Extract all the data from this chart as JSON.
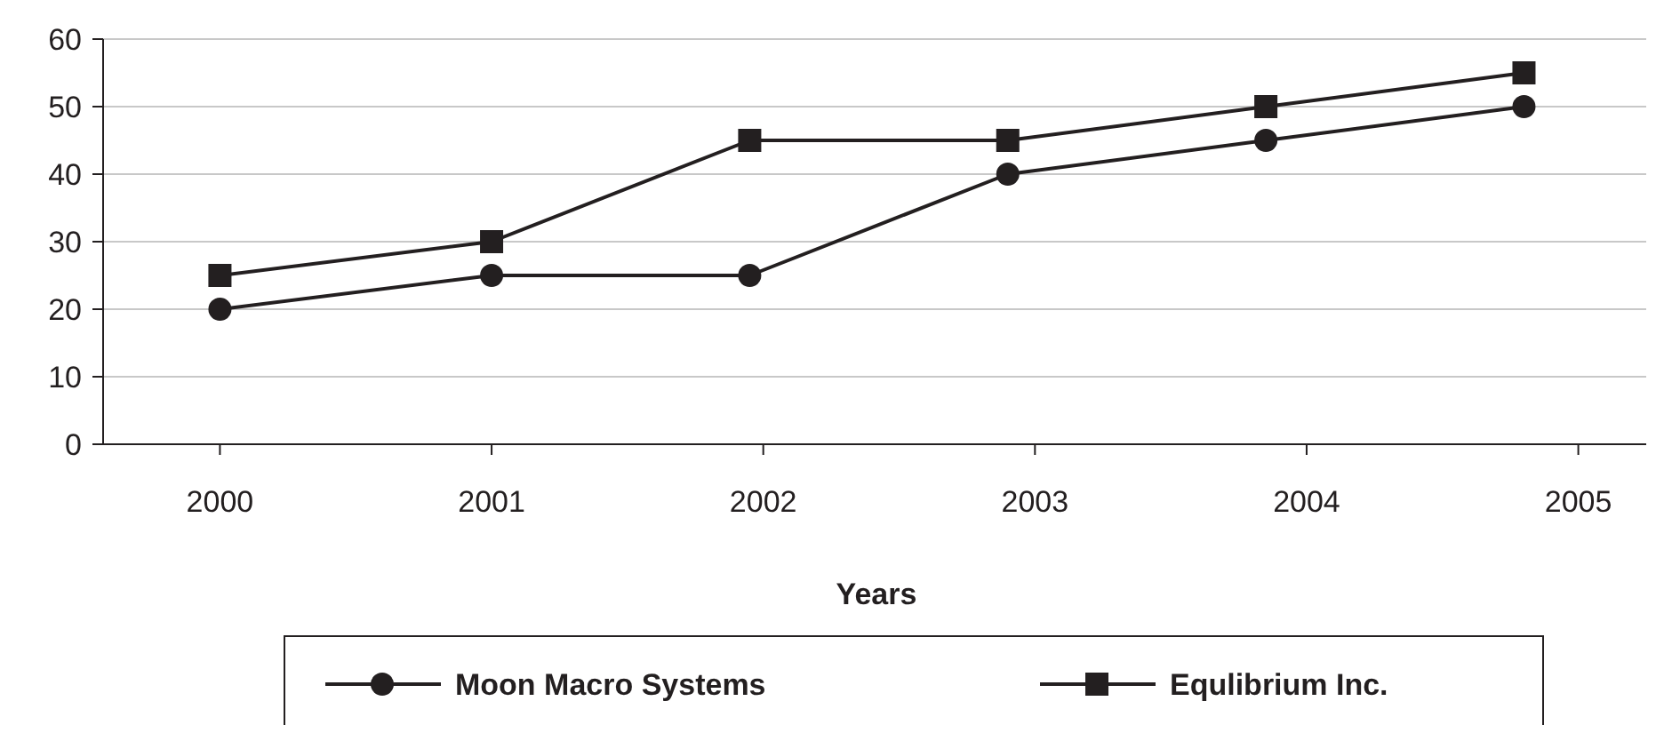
{
  "chart_data": {
    "type": "line",
    "xlabel": "Years",
    "x": [
      2000,
      2001,
      2001.95,
      2002.9,
      2003.85,
      2004.8
    ],
    "xlim": [
      1999.57,
      2005.25
    ],
    "xticks": [
      2000,
      2001,
      2002,
      2003,
      2004,
      2005
    ],
    "ylim": [
      0,
      60
    ],
    "yticks": [
      0,
      10,
      20,
      30,
      40,
      50,
      60
    ],
    "grid": "y",
    "legend": "bottom",
    "series": [
      {
        "name": "Moon Macro Systems",
        "color": "#231f20",
        "marker": "circle",
        "values": [
          20,
          25,
          25,
          40,
          45,
          50
        ]
      },
      {
        "name": "Equlibrium Inc.",
        "color": "#231f20",
        "marker": "square",
        "values": [
          25,
          30,
          45,
          45,
          50,
          55
        ]
      }
    ]
  }
}
